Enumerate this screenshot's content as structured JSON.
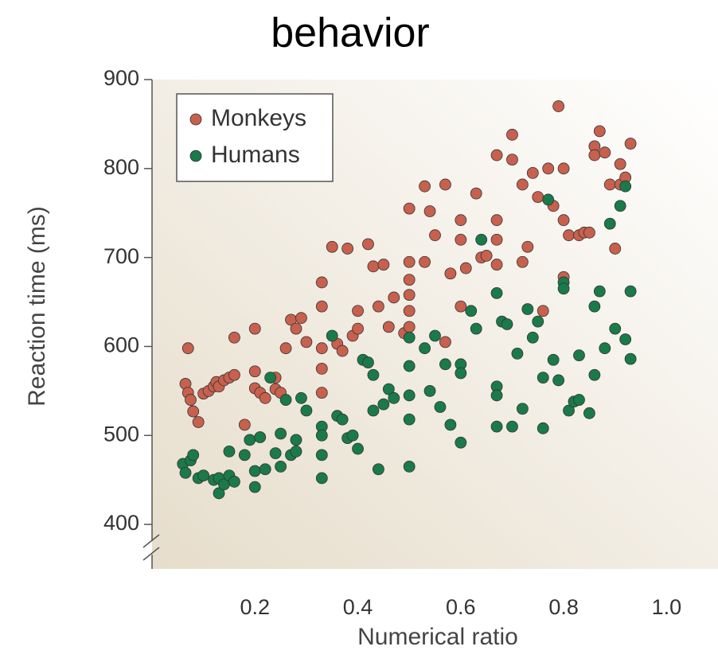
{
  "chart_data": {
    "type": "scatter",
    "title": "behavior",
    "xlabel": "Numerical ratio",
    "ylabel": "Reaction time (ms)",
    "xlim": [
      0,
      1.1
    ],
    "ylim": [
      350,
      900
    ],
    "xticks": [
      0.2,
      0.4,
      0.6,
      0.8,
      {
        "value": 1.0,
        "label": "1.0"
      }
    ],
    "yticks": [
      400,
      500,
      600,
      700,
      800,
      900
    ],
    "legend": "top-left",
    "series": [
      {
        "name": "Monkeys",
        "color": "#c8604e",
        "x": [
          0.07,
          0.065,
          0.07,
          0.075,
          0.08,
          0.09,
          0.1,
          0.11,
          0.12,
          0.125,
          0.13,
          0.14,
          0.15,
          0.16,
          0.16,
          0.18,
          0.2,
          0.2,
          0.2,
          0.21,
          0.22,
          0.24,
          0.24,
          0.25,
          0.26,
          0.27,
          0.28,
          0.29,
          0.3,
          0.33,
          0.33,
          0.33,
          0.33,
          0.33,
          0.35,
          0.36,
          0.37,
          0.38,
          0.39,
          0.4,
          0.4,
          0.42,
          0.43,
          0.44,
          0.45,
          0.46,
          0.47,
          0.49,
          0.5,
          0.5,
          0.5,
          0.5,
          0.5,
          0.5,
          0.53,
          0.53,
          0.54,
          0.55,
          0.57,
          0.57,
          0.58,
          0.6,
          0.6,
          0.6,
          0.61,
          0.63,
          0.64,
          0.65,
          0.67,
          0.67,
          0.67,
          0.67,
          0.7,
          0.7,
          0.72,
          0.72,
          0.73,
          0.74,
          0.75,
          0.76,
          0.77,
          0.78,
          0.79,
          0.8,
          0.8,
          0.8,
          0.81,
          0.83,
          0.84,
          0.85,
          0.86,
          0.86,
          0.87,
          0.88,
          0.89,
          0.9,
          0.91,
          0.91,
          0.92,
          0.93
        ],
        "values": [
          598,
          558,
          548,
          540,
          527,
          515,
          547,
          550,
          555,
          560,
          555,
          562,
          565,
          568,
          610,
          512,
          620,
          572,
          553,
          548,
          542,
          565,
          552,
          548,
          598,
          630,
          620,
          632,
          605,
          672,
          645,
          598,
          575,
          548,
          712,
          603,
          595,
          710,
          612,
          640,
          620,
          715,
          690,
          645,
          692,
          622,
          655,
          615,
          755,
          695,
          675,
          658,
          640,
          622,
          780,
          695,
          752,
          725,
          782,
          605,
          682,
          742,
          720,
          645,
          688,
          772,
          700,
          702,
          815,
          742,
          720,
          692,
          838,
          810,
          782,
          695,
          712,
          795,
          768,
          640,
          800,
          758,
          870,
          800,
          742,
          678,
          725,
          725,
          728,
          728,
          825,
          815,
          842,
          818,
          782,
          710,
          805,
          782,
          790,
          828
        ]
      },
      {
        "name": "Humans",
        "color": "#1a7a4a",
        "x": [
          0.06,
          0.065,
          0.075,
          0.08,
          0.09,
          0.1,
          0.12,
          0.13,
          0.13,
          0.14,
          0.15,
          0.15,
          0.16,
          0.18,
          0.19,
          0.2,
          0.2,
          0.21,
          0.22,
          0.23,
          0.24,
          0.25,
          0.25,
          0.26,
          0.27,
          0.28,
          0.28,
          0.29,
          0.3,
          0.33,
          0.33,
          0.33,
          0.33,
          0.35,
          0.36,
          0.37,
          0.38,
          0.39,
          0.4,
          0.41,
          0.42,
          0.43,
          0.43,
          0.44,
          0.45,
          0.46,
          0.47,
          0.5,
          0.5,
          0.5,
          0.5,
          0.5,
          0.53,
          0.54,
          0.55,
          0.56,
          0.57,
          0.58,
          0.6,
          0.6,
          0.6,
          0.62,
          0.63,
          0.64,
          0.67,
          0.67,
          0.67,
          0.67,
          0.68,
          0.69,
          0.7,
          0.71,
          0.72,
          0.73,
          0.74,
          0.75,
          0.76,
          0.76,
          0.77,
          0.78,
          0.79,
          0.8,
          0.8,
          0.81,
          0.82,
          0.83,
          0.83,
          0.85,
          0.86,
          0.86,
          0.87,
          0.88,
          0.89,
          0.9,
          0.91,
          0.92,
          0.92,
          0.93,
          0.93
        ],
        "values": [
          468,
          458,
          472,
          478,
          452,
          455,
          450,
          435,
          452,
          445,
          482,
          455,
          448,
          478,
          495,
          442,
          460,
          498,
          462,
          565,
          480,
          502,
          465,
          540,
          478,
          495,
          482,
          542,
          528,
          510,
          500,
          478,
          452,
          612,
          522,
          518,
          497,
          500,
          485,
          585,
          582,
          568,
          528,
          462,
          535,
          552,
          542,
          610,
          578,
          545,
          518,
          465,
          598,
          550,
          612,
          532,
          580,
          512,
          580,
          570,
          492,
          640,
          620,
          720,
          660,
          555,
          545,
          510,
          628,
          625,
          510,
          592,
          530,
          642,
          610,
          628,
          565,
          508,
          765,
          585,
          562,
          672,
          665,
          528,
          538,
          540,
          590,
          525,
          645,
          568,
          662,
          598,
          738,
          620,
          758,
          780,
          608,
          662,
          586
        ]
      }
    ]
  }
}
